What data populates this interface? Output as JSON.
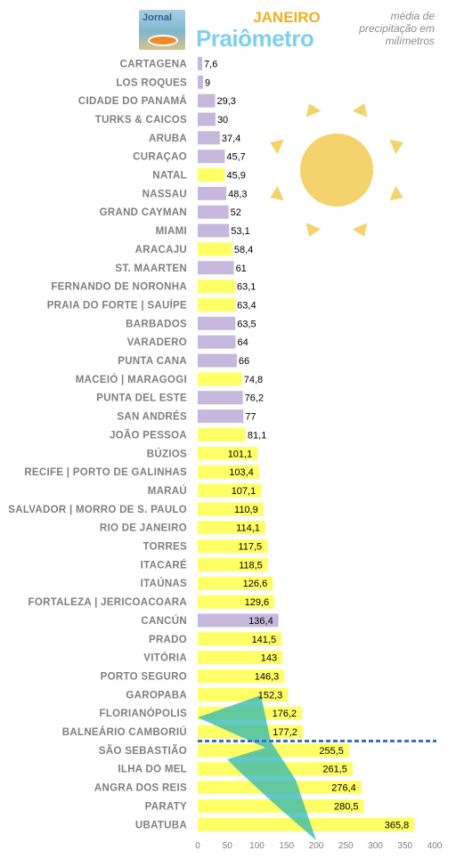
{
  "header": {
    "logo_text": "Jornal",
    "month": "JANEIRO",
    "brand": "Praiômetro",
    "caption": "média de precipitação em milímetros"
  },
  "colors": {
    "domestic_bar": "#ffff66",
    "international_bar": "#c6b8dc",
    "reference_line": "#3a6fbf",
    "sun": "#f4d36c",
    "lightning": "#2eb5b0",
    "tick_text": "#7f7f7f"
  },
  "icons": [
    "sun-icon",
    "lightning-icon",
    "logo-icon"
  ],
  "chart_data": {
    "type": "bar",
    "orientation": "horizontal",
    "categories": [
      "CARTAGENA",
      "LOS ROQUES",
      "CIDADE DO PANAMÁ",
      "TURKS & CAICOS",
      "ARUBA",
      "CURAÇAO",
      "NATAL",
      "NASSAU",
      "GRAND CAYMAN",
      "MIAMI",
      "ARACAJU",
      "ST. MAARTEN",
      "FERNANDO DE NORONHA",
      "PRAIA DO FORTE | SAUÍPE",
      "BARBADOS",
      "VARADERO",
      "PUNTA CANA",
      "MACEIÓ | MARAGOGI",
      "PUNTA DEL ESTE",
      "SAN ANDRÉS",
      "JOÃO PESSOA",
      "BÚZIOS",
      "RECIFE | PORTO DE GALINHAS",
      "MARAÚ",
      "SALVADOR | MORRO DE S. PAULO",
      "RIO DE JANEIRO",
      "TORRES",
      "ITACARÉ",
      "ITAÚNAS",
      "FORTALEZA | JERICOACOARA",
      "CANCÚN",
      "PRADO",
      "VITÓRIA",
      "PORTO SEGURO",
      "GAROPABA",
      "FLORIANÓPOLIS",
      "BALNEÁRIO CAMBORIÚ",
      "SÃO SEBASTIÃO",
      "ILHA DO MEL",
      "ANGRA DOS REIS",
      "PARATY",
      "UBATUBA"
    ],
    "values": [
      7.6,
      9,
      29.3,
      30,
      37.4,
      45.7,
      45.9,
      48.3,
      52,
      53.1,
      58.4,
      61,
      63.1,
      63.4,
      63.5,
      64,
      66,
      74.8,
      76.2,
      77,
      81.1,
      101.1,
      103.4,
      107.1,
      110.9,
      114.1,
      117.5,
      118.5,
      126.6,
      129.6,
      136.4,
      141.5,
      143,
      146.3,
      152.3,
      176.2,
      177.2,
      255.5,
      261.5,
      276.4,
      280.5,
      365.8
    ],
    "value_labels": [
      "7,6",
      "9",
      "29,3",
      "30",
      "37,4",
      "45,7",
      "45,9",
      "48,3",
      "52",
      "53,1",
      "58,4",
      "61",
      "63,1",
      "63,4",
      "63,5",
      "64",
      "66",
      "74,8",
      "76,2",
      "77",
      "81,1",
      "101,1",
      "103,4",
      "107,1",
      "110,9",
      "114,1",
      "117,5",
      "118,5",
      "126,6",
      "129,6",
      "136,4",
      "141,5",
      "143",
      "146,3",
      "152,3",
      "176,2",
      "177,2",
      "255,5",
      "261,5",
      "276,4",
      "280,5",
      "365,8"
    ],
    "groups": [
      "international",
      "international",
      "international",
      "international",
      "international",
      "international",
      "domestic",
      "international",
      "international",
      "international",
      "domestic",
      "international",
      "domestic",
      "domestic",
      "international",
      "international",
      "international",
      "domestic",
      "international",
      "international",
      "domestic",
      "domestic",
      "domestic",
      "domestic",
      "domestic",
      "domestic",
      "domestic",
      "domestic",
      "domestic",
      "domestic",
      "international",
      "domestic",
      "domestic",
      "domestic",
      "domestic",
      "domestic",
      "domestic",
      "domestic",
      "domestic",
      "domestic",
      "domestic",
      "domestic"
    ],
    "xlim": [
      0,
      400
    ],
    "xticks": [
      "0",
      "50",
      "100",
      "150",
      "200",
      "250",
      "300",
      "350",
      "400"
    ],
    "reference_line": {
      "between": [
        "BALNEÁRIO CAMBORIÚ",
        "SÃO SEBASTIÃO"
      ],
      "style": "dashed"
    },
    "grid": false,
    "title": "JANEIRO",
    "xlabel": "",
    "ylabel": ""
  }
}
